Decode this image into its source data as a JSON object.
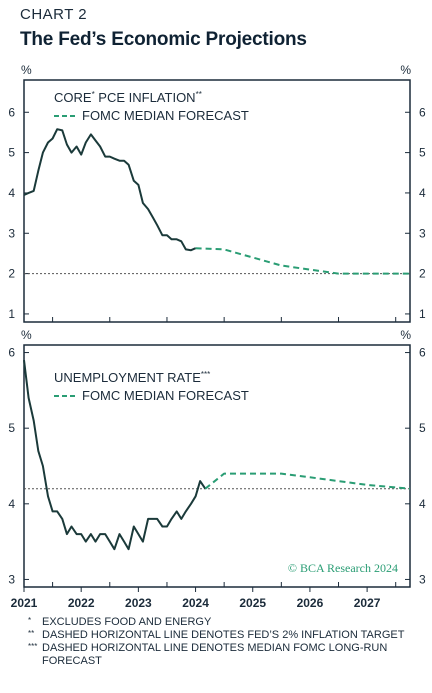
{
  "header": {
    "label": "CHART 2",
    "title": "The Fed’s Economic Projections"
  },
  "colors": {
    "actual": "#1b3a3a",
    "forecast": "#2a9d74",
    "reference": "#555555",
    "frame": "#1b2b3a"
  },
  "copyright": "© BCA Research 2024",
  "footnotes": [
    {
      "mark": "*",
      "text": "EXCLUDES FOOD AND ENERGY"
    },
    {
      "mark": "**",
      "text": "DASHED HORIZONTAL LINE DENOTES FED’S 2% INFLATION TARGET"
    },
    {
      "mark": "***",
      "text": "DASHED HORIZONTAL LINE DENOTES MEDIAN FOMC LONG-RUN FORECAST"
    }
  ],
  "chart_data": [
    {
      "type": "line",
      "unit_label": "%",
      "ylim": [
        0.8,
        6.8
      ],
      "yticks": [
        1,
        2,
        3,
        4,
        5,
        6
      ],
      "xlim": [
        2021.0,
        2027.75
      ],
      "xticks": [
        "2021",
        "2022",
        "2023",
        "2024",
        "2025",
        "2026",
        "2027"
      ],
      "reference_line": 2.0,
      "legend": {
        "actual_label": "CORE",
        "actual_sup": "*",
        "actual_label_rest": " PCE INFLATION",
        "actual_sup2": "**",
        "forecast_label": "FOMC MEDIAN FORECAST"
      },
      "series": [
        {
          "role": "actual",
          "x": [
            2021.0,
            2021.08,
            2021.17,
            2021.25,
            2021.33,
            2021.42,
            2021.5,
            2021.58,
            2021.67,
            2021.75,
            2021.83,
            2021.92,
            2022.0,
            2022.08,
            2022.17,
            2022.25,
            2022.33,
            2022.42,
            2022.5,
            2022.58,
            2022.67,
            2022.75,
            2022.83,
            2022.92,
            2023.0,
            2023.08,
            2023.17,
            2023.25,
            2023.33,
            2023.42,
            2023.5,
            2023.58,
            2023.67,
            2023.75,
            2023.83,
            2023.92,
            2024.0
          ],
          "y": [
            3.95,
            4.0,
            4.05,
            4.55,
            5.0,
            5.25,
            5.35,
            5.58,
            5.55,
            5.2,
            5.0,
            5.15,
            4.95,
            5.25,
            5.45,
            5.3,
            5.15,
            4.9,
            4.9,
            4.85,
            4.8,
            4.8,
            4.7,
            4.3,
            4.2,
            3.75,
            3.6,
            3.4,
            3.2,
            2.95,
            2.95,
            2.85,
            2.85,
            2.8,
            2.6,
            2.58,
            2.63
          ]
        },
        {
          "role": "forecast",
          "x": [
            2024.0,
            2024.5,
            2025.0,
            2025.5,
            2026.0,
            2026.5,
            2027.0,
            2027.75
          ],
          "y": [
            2.63,
            2.6,
            2.4,
            2.2,
            2.1,
            2.0,
            2.0,
            2.0
          ]
        }
      ]
    },
    {
      "type": "line",
      "unit_label": "%",
      "ylim": [
        2.9,
        6.1
      ],
      "yticks": [
        3,
        4,
        5,
        6
      ],
      "xlim": [
        2021.0,
        2027.75
      ],
      "xticks": [
        "2021",
        "2022",
        "2023",
        "2024",
        "2025",
        "2026",
        "2027"
      ],
      "reference_line": 4.2,
      "legend": {
        "actual_label": "UNEMPLOYMENT RATE",
        "actual_sup": "***",
        "forecast_label": "FOMC MEDIAN FORECAST"
      },
      "series": [
        {
          "role": "actual",
          "x": [
            2021.0,
            2021.08,
            2021.17,
            2021.25,
            2021.33,
            2021.42,
            2021.5,
            2021.58,
            2021.67,
            2021.75,
            2021.83,
            2021.92,
            2022.0,
            2022.08,
            2022.17,
            2022.25,
            2022.33,
            2022.42,
            2022.5,
            2022.58,
            2022.67,
            2022.75,
            2022.83,
            2022.92,
            2023.0,
            2023.08,
            2023.17,
            2023.25,
            2023.33,
            2023.42,
            2023.5,
            2023.58,
            2023.67,
            2023.75,
            2023.83,
            2023.92,
            2024.0,
            2024.08,
            2024.17
          ],
          "y": [
            5.9,
            5.4,
            5.1,
            4.7,
            4.5,
            4.1,
            3.9,
            3.9,
            3.8,
            3.6,
            3.7,
            3.6,
            3.6,
            3.5,
            3.6,
            3.5,
            3.6,
            3.6,
            3.5,
            3.4,
            3.6,
            3.5,
            3.4,
            3.7,
            3.6,
            3.5,
            3.8,
            3.8,
            3.8,
            3.7,
            3.7,
            3.8,
            3.9,
            3.8,
            3.9,
            4.0,
            4.1,
            4.3,
            4.2
          ]
        },
        {
          "role": "forecast",
          "x": [
            2024.17,
            2024.5,
            2025.0,
            2025.5,
            2026.0,
            2026.5,
            2027.0,
            2027.75
          ],
          "y": [
            4.2,
            4.4,
            4.4,
            4.4,
            4.35,
            4.3,
            4.25,
            4.2
          ]
        }
      ]
    }
  ]
}
